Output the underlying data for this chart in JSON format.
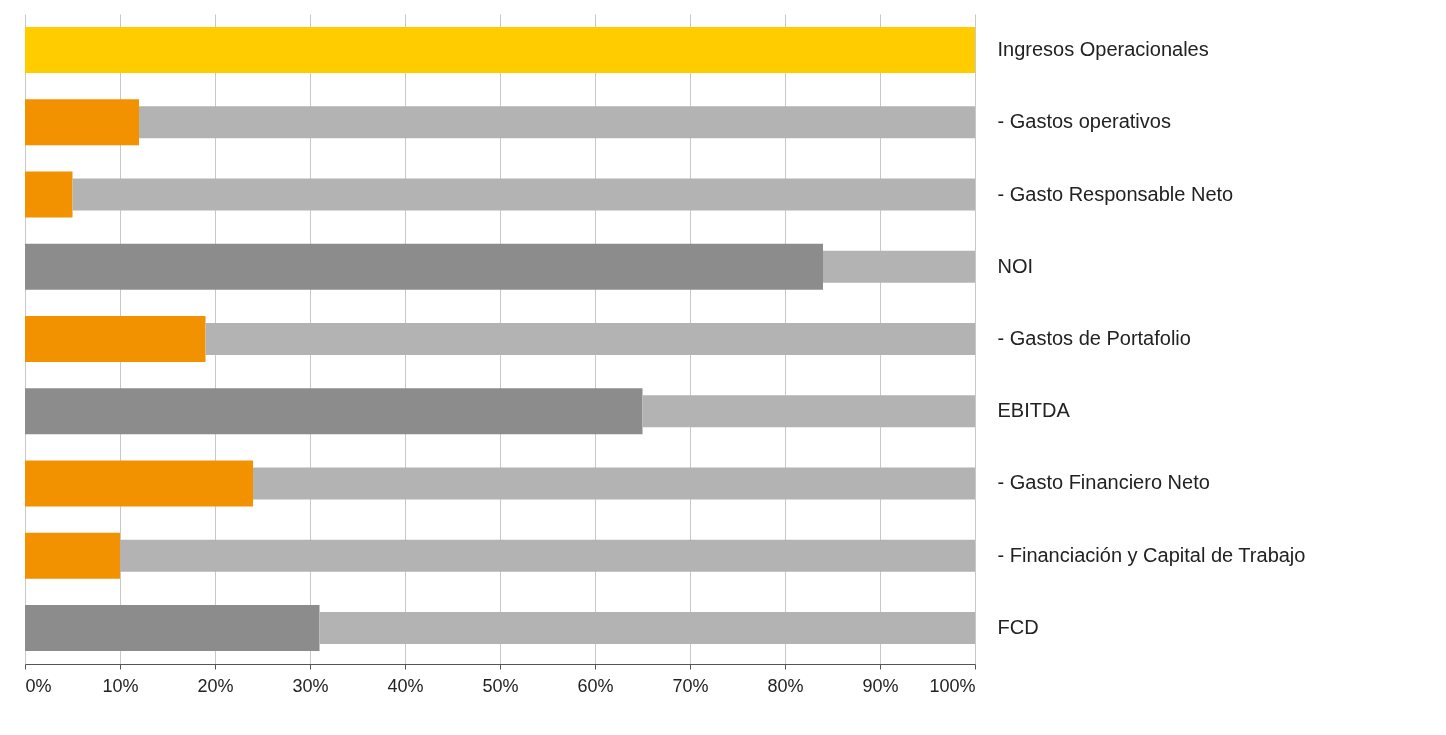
{
  "chart_data": {
    "type": "bar",
    "orientation": "horizontal",
    "stacked": true,
    "grid": "x",
    "categories": [
      "Ingresos Operacionales",
      "- Gastos operativos",
      "- Gasto Responsable Neto",
      "NOI",
      "- Gastos de Portafolio",
      "EBITDA",
      "- Gasto Financiero Neto",
      "- Financiación y Capital de Trabajo",
      "FCD"
    ],
    "series": [
      {
        "colors": [
          "#ffcc00",
          "#f39200",
          "#f39200",
          "#8c8c8c",
          "#f39200",
          "#8c8c8c",
          "#f39200",
          "#f39200",
          "#8c8c8c"
        ],
        "values": [
          100,
          12,
          5,
          84,
          19,
          65,
          24,
          10,
          31
        ]
      },
      {
        "color": "#b3b3b3",
        "values": [
          0,
          88,
          95,
          16,
          81,
          35,
          76,
          90,
          69
        ]
      }
    ],
    "xlim": [
      0,
      100
    ],
    "xticks": [
      {
        "value": 0,
        "label": "0%"
      },
      {
        "value": 10,
        "label": "10%"
      },
      {
        "value": 20,
        "label": "20%"
      },
      {
        "value": 30,
        "label": "30%"
      },
      {
        "value": 40,
        "label": "40%"
      },
      {
        "value": 50,
        "label": "50%"
      },
      {
        "value": 60,
        "label": "60%"
      },
      {
        "value": 70,
        "label": "70%"
      },
      {
        "value": 80,
        "label": "80%"
      },
      {
        "value": 90,
        "label": "90%"
      },
      {
        "value": 100,
        "label": "100%"
      }
    ]
  }
}
